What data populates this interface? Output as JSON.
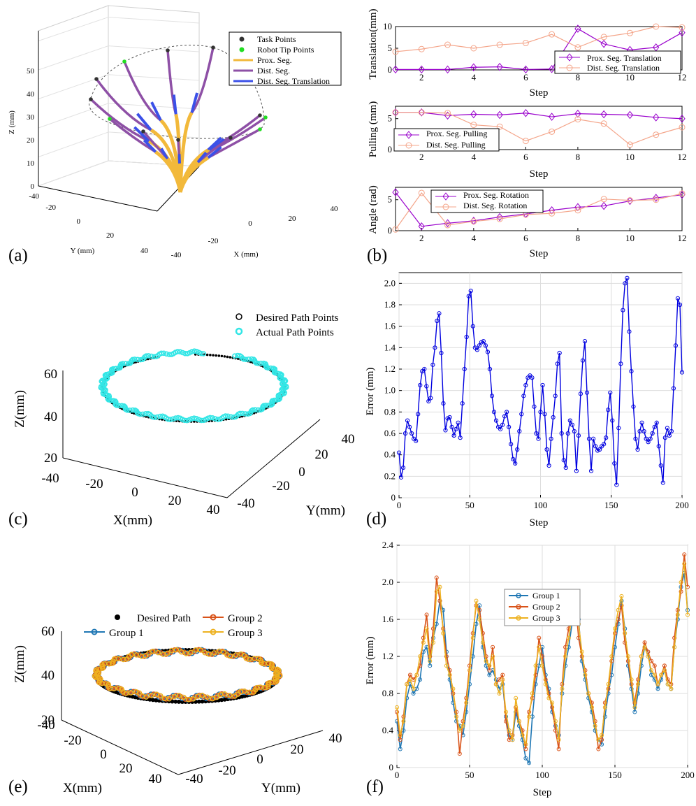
{
  "panel_labels": [
    "(a)",
    "(b)",
    "(c)",
    "(d)",
    "(e)",
    "(f)"
  ],
  "colors": {
    "task_point": "#333333",
    "tip_point": "#22dd22",
    "prox_seg": "#f2b93b",
    "dist_seg": "#8e50a6",
    "dist_translation": "#3b50e8",
    "prox_line": "#9900cc",
    "dist_line": "#f4a58a",
    "desired": "#000000",
    "actual": "#33e6e6",
    "error": "#0000e0",
    "group1": "#1f77b4",
    "group2": "#d95319",
    "group3": "#edb120"
  },
  "chart_data": [
    {
      "panel": "(a)",
      "type": "line3d",
      "xlabel": "X (mm)",
      "ylabel": "Y (mm)",
      "zlabel": "Z (mm)",
      "xticks": [
        "-40",
        "-20",
        "0",
        "20",
        "40"
      ],
      "yticks": [
        "-40",
        "-20",
        "0",
        "20",
        "40"
      ],
      "zticks": [
        "0",
        "10",
        "20",
        "30",
        "40",
        "50"
      ],
      "legend": [
        "Task Points",
        "Robot Tip Points",
        "Prox. Seg.",
        "Dist. Seg.",
        "Dist. Seg. Translation"
      ],
      "task_points": 12
    },
    {
      "panel": "(b) top",
      "type": "line",
      "xlabel": "Step",
      "ylabel": "Translation(mm)",
      "xticks": [
        "2",
        "4",
        "6",
        "8",
        "10",
        "12"
      ],
      "yticks": [
        "0",
        "5",
        "10"
      ],
      "xlim": [
        1,
        12
      ],
      "ylim": [
        0,
        10
      ],
      "x": [
        1,
        2,
        3,
        4,
        5,
        6,
        7,
        8,
        9,
        10,
        11,
        12
      ],
      "series": [
        {
          "name": "Prox. Seg. Translation",
          "values": [
            0.1,
            0.1,
            0.1,
            0.6,
            0.7,
            0.1,
            0.2,
            9.5,
            6.0,
            4.6,
            5.2,
            8.6
          ]
        },
        {
          "name": "Dist. Seg. Translation",
          "values": [
            4.2,
            4.8,
            5.8,
            5.0,
            5.8,
            6.2,
            8.2,
            5.2,
            7.6,
            8.5,
            10.0,
            9.8
          ]
        }
      ]
    },
    {
      "panel": "(b) middle",
      "type": "line",
      "xlabel": "Step",
      "ylabel": "Pulling (mm)",
      "xticks": [
        "2",
        "4",
        "6",
        "8",
        "10",
        "12"
      ],
      "yticks": [
        "0",
        "5"
      ],
      "xlim": [
        1,
        12
      ],
      "ylim": [
        0,
        7
      ],
      "x": [
        1,
        2,
        3,
        4,
        5,
        6,
        7,
        8,
        9,
        10,
        11,
        12
      ],
      "series": [
        {
          "name": "Prox. Seg. Pulling",
          "values": [
            6.0,
            6.0,
            5.5,
            5.7,
            5.6,
            5.9,
            5.3,
            5.8,
            5.7,
            5.6,
            5.2,
            5.0
          ]
        },
        {
          "name": "Dist. Seg. Pulling",
          "values": [
            6.0,
            6.0,
            5.9,
            4.0,
            3.7,
            1.4,
            2.9,
            4.9,
            4.2,
            0.8,
            2.4,
            3.6
          ]
        }
      ]
    },
    {
      "panel": "(b) bottom",
      "type": "line",
      "xlabel": "Step",
      "ylabel": "Angle (rad)",
      "xticks": [
        "2",
        "4",
        "6",
        "8",
        "10",
        "12"
      ],
      "yticks": [
        "0",
        "5"
      ],
      "xlim": [
        1,
        12
      ],
      "ylim": [
        0,
        7
      ],
      "x": [
        1,
        2,
        3,
        4,
        5,
        6,
        7,
        8,
        9,
        10,
        11,
        12
      ],
      "series": [
        {
          "name": "Prox. Seg. Rotation",
          "values": [
            6.2,
            0.7,
            1.2,
            1.6,
            2.2,
            2.7,
            3.3,
            3.8,
            4.0,
            4.8,
            5.3,
            5.8
          ]
        },
        {
          "name": "Dist. Seg. Rotation",
          "values": [
            0.2,
            6.1,
            0.9,
            1.5,
            1.9,
            2.6,
            2.8,
            3.3,
            5.1,
            4.9,
            5.0,
            6.0
          ]
        }
      ]
    },
    {
      "panel": "(c)",
      "type": "scatter3d",
      "xlabel": "X(mm)",
      "ylabel": "Y(mm)",
      "zlabel": "Z(mm)",
      "xticks": [
        "-40",
        "-20",
        "0",
        "20",
        "40"
      ],
      "yticks": [
        "-40",
        "-20",
        "0",
        "20",
        "40"
      ],
      "zticks": [
        "20",
        "40",
        "60"
      ],
      "legend": [
        "Desired Path Points",
        "Actual Path Points"
      ]
    },
    {
      "panel": "(d)",
      "type": "line",
      "xlabel": "Step",
      "ylabel": "Error (mm)",
      "xticks": [
        "0",
        "50",
        "100",
        "150",
        "200"
      ],
      "yticks": [
        "0",
        "0.2",
        "0.4",
        "0.6",
        "0.8",
        "1.0",
        "1.2",
        "1.4",
        "1.6",
        "1.8",
        "2.0"
      ],
      "xlim": [
        0,
        200
      ],
      "ylim": [
        0,
        2.1
      ],
      "series": [
        {
          "name": "Error",
          "values": [
            0.42,
            0.19,
            0.28,
            0.6,
            0.72,
            0.66,
            0.6,
            0.55,
            0.53,
            0.78,
            1.05,
            1.18,
            1.2,
            1.04,
            0.9,
            0.93,
            1.24,
            1.4,
            1.65,
            1.72,
            1.35,
            0.88,
            0.63,
            0.74,
            0.75,
            0.66,
            0.58,
            0.64,
            0.7,
            0.56,
            0.88,
            1.2,
            1.5,
            1.88,
            1.93,
            1.6,
            1.4,
            1.38,
            1.42,
            1.45,
            1.46,
            1.42,
            1.36,
            1.2,
            0.95,
            0.8,
            0.72,
            0.66,
            0.64,
            0.68,
            0.76,
            0.8,
            0.66,
            0.5,
            0.36,
            0.32,
            0.45,
            0.62,
            0.78,
            0.95,
            1.05,
            1.12,
            1.14,
            1.12,
            0.85,
            0.6,
            0.55,
            0.8,
            1.05,
            0.78,
            0.45,
            0.3,
            0.55,
            0.75,
            0.95,
            1.25,
            1.35,
            0.6,
            0.35,
            0.28,
            0.6,
            0.72,
            0.68,
            0.62,
            0.25,
            0.58,
            0.97,
            1.28,
            1.46,
            0.98,
            0.55,
            0.25,
            0.55,
            0.48,
            0.44,
            0.45,
            0.48,
            0.5,
            0.56,
            0.82,
            0.98,
            0.72,
            0.32,
            0.12,
            0.65,
            1.25,
            1.75,
            2.0,
            2.05,
            1.55,
            1.18,
            0.85,
            0.55,
            0.45,
            0.62,
            0.7,
            0.62,
            0.55,
            0.52,
            0.55,
            0.6,
            0.66,
            0.7,
            0.48,
            0.3,
            0.14,
            0.56,
            0.65,
            0.58,
            0.62,
            1.02,
            1.42,
            1.86,
            1.8,
            1.17
          ]
        }
      ]
    },
    {
      "panel": "(e)",
      "type": "scatter3d",
      "xlabel": "X(mm)",
      "ylabel": "Y(mm)",
      "zlabel": "Z(mm)",
      "xticks": [
        "-40",
        "-20",
        "0",
        "20",
        "40"
      ],
      "yticks": [
        "-40",
        "-20",
        "0",
        "20",
        "40"
      ],
      "zticks": [
        "20",
        "40",
        "60"
      ],
      "legend": [
        "Desired Path",
        "Group 1",
        "Group 2",
        "Group 3"
      ]
    },
    {
      "panel": "(f)",
      "type": "line",
      "xlabel": "Step",
      "ylabel": "Error (mm)",
      "xticks": [
        "0",
        "50",
        "100",
        "150",
        "200"
      ],
      "yticks": [
        "0",
        "0.4",
        "0.8",
        "1.2",
        "1.6",
        "2.0",
        "2.4"
      ],
      "xlim": [
        0,
        200
      ],
      "ylim": [
        0,
        2.4
      ],
      "series": [
        {
          "name": "Group 1",
          "values": [
            0.5,
            0.2,
            0.4,
            0.75,
            0.9,
            0.8,
            0.85,
            0.95,
            1.25,
            1.3,
            1.1,
            1.4,
            1.55,
            1.8,
            1.7,
            1.25,
            0.95,
            0.7,
            0.5,
            0.45,
            0.35,
            0.6,
            0.9,
            1.2,
            1.55,
            1.75,
            1.3,
            1.1,
            1.0,
            1.05,
            0.95,
            0.85,
            0.9,
            0.55,
            0.35,
            0.3,
            0.6,
            0.45,
            0.3,
            0.1,
            0.05,
            0.55,
            0.9,
            1.1,
            1.3,
            1.0,
            0.85,
            0.6,
            0.45,
            0.35,
            0.8,
            1.1,
            1.3,
            1.55,
            1.85,
            1.6,
            1.15,
            0.95,
            0.75,
            0.6,
            0.4,
            0.3,
            0.25,
            0.55,
            0.8,
            1.0,
            1.3,
            1.55,
            1.8,
            1.5,
            1.1,
            0.85,
            0.6,
            0.8,
            1.1,
            1.3,
            1.25,
            1.0,
            0.95,
            0.85,
            0.95,
            1.05,
            0.9,
            0.85,
            1.3,
            1.6,
            1.95,
            2.1,
            1.7
          ]
        },
        {
          "name": "Group 2",
          "values": [
            0.6,
            0.3,
            0.55,
            0.9,
            1.0,
            0.95,
            1.0,
            1.1,
            1.4,
            1.65,
            1.2,
            1.5,
            2.05,
            1.8,
            1.5,
            1.2,
            1.05,
            0.8,
            0.6,
            0.15,
            0.5,
            0.75,
            1.1,
            1.45,
            1.75,
            1.7,
            1.45,
            1.2,
            1.05,
            1.3,
            0.9,
            0.95,
            1.0,
            0.5,
            0.3,
            0.35,
            0.65,
            0.5,
            0.4,
            0.2,
            0.6,
            0.75,
            1.0,
            1.4,
            1.2,
            0.95,
            0.8,
            0.65,
            0.4,
            0.2,
            0.9,
            1.3,
            1.5,
            1.75,
            1.8,
            1.4,
            1.2,
            1.05,
            0.8,
            0.7,
            0.5,
            0.2,
            0.3,
            0.7,
            0.85,
            1.15,
            1.45,
            1.6,
            1.75,
            1.35,
            1.15,
            0.9,
            0.7,
            0.95,
            1.2,
            1.35,
            1.25,
            1.15,
            1.1,
            0.9,
            1.0,
            1.1,
            0.95,
            0.9,
            1.4,
            1.7,
            1.9,
            2.3,
            1.95
          ]
        },
        {
          "name": "Group 3",
          "values": [
            0.65,
            0.35,
            0.5,
            0.9,
            0.95,
            0.85,
            1.0,
            1.2,
            1.35,
            1.5,
            1.15,
            1.35,
            1.9,
            1.95,
            1.45,
            1.1,
            1.0,
            0.85,
            0.55,
            0.4,
            0.45,
            0.7,
            1.05,
            1.4,
            1.8,
            1.6,
            1.35,
            1.15,
            1.1,
            1.2,
            0.9,
            0.8,
            0.95,
            0.6,
            0.4,
            0.3,
            0.75,
            0.5,
            0.35,
            0.25,
            0.55,
            0.8,
            1.1,
            1.3,
            1.1,
            0.9,
            0.75,
            0.7,
            0.5,
            0.3,
            0.85,
            1.2,
            1.4,
            1.65,
            1.9,
            1.55,
            1.25,
            1.0,
            0.8,
            0.65,
            0.45,
            0.3,
            0.35,
            0.65,
            0.9,
            1.2,
            1.5,
            1.7,
            1.85,
            1.45,
            1.2,
            0.95,
            0.65,
            0.9,
            1.2,
            1.3,
            1.2,
            1.05,
            1.0,
            0.9,
            1.0,
            1.05,
            0.9,
            0.85,
            1.3,
            1.65,
            2.0,
            2.2,
            1.65
          ]
        }
      ]
    }
  ]
}
